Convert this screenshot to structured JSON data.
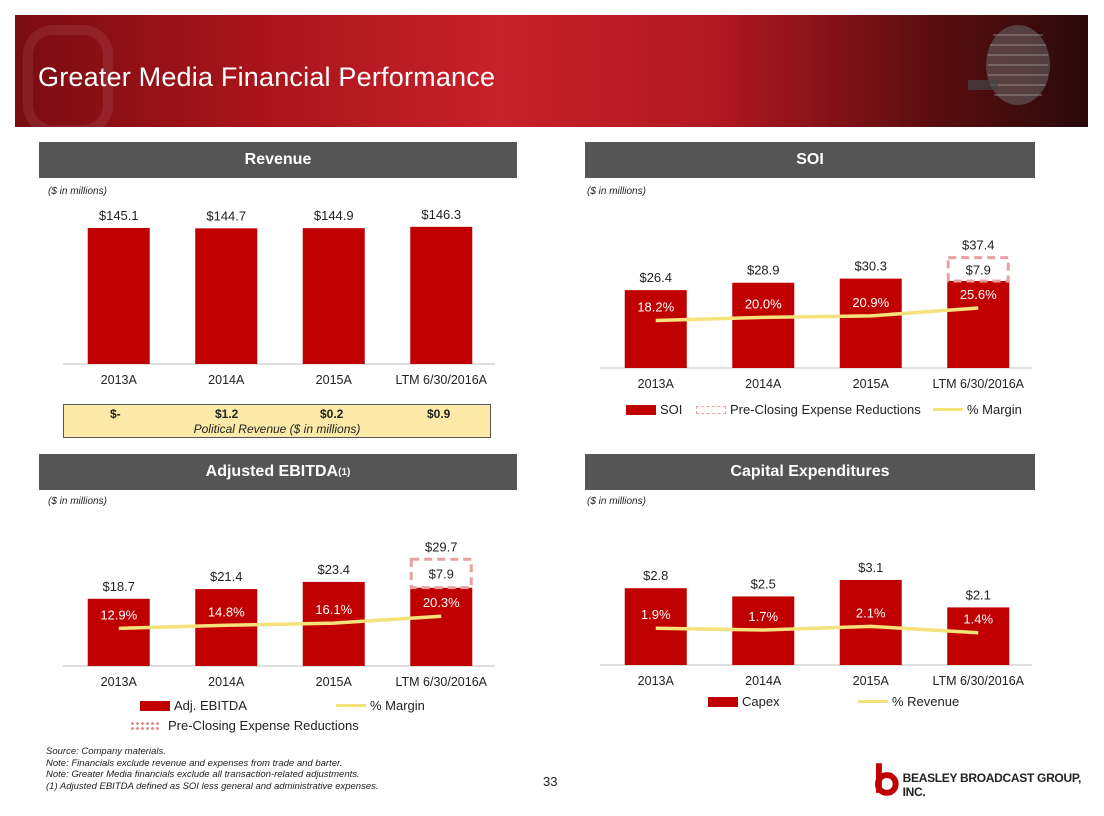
{
  "page": {
    "title": "Greater Media Financial Performance",
    "page_number": "33",
    "logo_text": "BEASLEY BROADCAST GROUP, INC.",
    "footnotes": [
      "Source: Company materials.",
      "Note: Financials exclude revenue and expenses from trade and barter.",
      "Note: Greater Media financials exclude all transaction-related adjustments.",
      "(1)   Adjusted EBITDA defined as SOI less general and administrative expenses."
    ]
  },
  "revenue": {
    "header": "Revenue",
    "unit": "($ in millions)",
    "political": {
      "values": [
        "$-",
        "$1.2",
        "$0.2",
        "$0.9"
      ],
      "caption": "Political Revenue ($ in millions)"
    }
  },
  "soi": {
    "header": "SOI",
    "unit": "($ in millions)",
    "legend": [
      "SOI",
      "Pre-Closing Expense Reductions",
      "% Margin"
    ]
  },
  "ebitda": {
    "header": "Adjusted EBITDA",
    "header_sup": "(1)",
    "unit": "($ in millions)",
    "legend": [
      "Adj. EBITDA",
      "% Margin",
      "Pre-Closing Expense Reductions"
    ]
  },
  "capex": {
    "header": "Capital Expenditures",
    "unit": "($ in millions)",
    "legend": [
      "Capex",
      "% Revenue"
    ]
  },
  "chart_data": [
    {
      "id": "revenue",
      "type": "bar",
      "categories": [
        "2013A",
        "2014A",
        "2015A",
        "LTM 6/30/2016A"
      ],
      "values": [
        145.1,
        144.7,
        144.9,
        146.3
      ],
      "labels": [
        "$145.1",
        "$144.7",
        "$144.9",
        "$146.3"
      ],
      "ylim": [
        0,
        160
      ]
    },
    {
      "id": "soi",
      "type": "bar",
      "categories": [
        "2013A",
        "2014A",
        "2015A",
        "LTM 6/30/2016A"
      ],
      "series": [
        {
          "name": "SOI",
          "values": [
            26.4,
            28.9,
            30.3,
            29.5
          ]
        },
        {
          "name": "Pre-Closing Expense Reductions",
          "values": [
            0,
            0,
            0,
            7.9
          ]
        },
        {
          "name": "% Margin",
          "values": [
            18.2,
            20.0,
            20.9,
            25.6
          ]
        }
      ],
      "total_labels": [
        "$26.4",
        "$28.9",
        "$30.3",
        "$37.4"
      ],
      "stack_label": "$7.9",
      "line_labels": [
        "18.2%",
        "20.0%",
        "20.9%",
        "25.6%"
      ],
      "ylim": [
        0,
        40
      ],
      "line_ylim": [
        -10,
        60
      ]
    },
    {
      "id": "ebitda",
      "type": "bar",
      "categories": [
        "2013A",
        "2014A",
        "2015A",
        "LTM 6/30/2016A"
      ],
      "series": [
        {
          "name": "Adj. EBITDA",
          "values": [
            18.7,
            21.4,
            23.4,
            21.8
          ]
        },
        {
          "name": "Pre-Closing Expense Reductions",
          "values": [
            0,
            0,
            0,
            7.9
          ]
        },
        {
          "name": "% Margin",
          "values": [
            12.9,
            14.8,
            16.1,
            20.3
          ]
        }
      ],
      "total_labels": [
        "$18.7",
        "$21.4",
        "$23.4",
        "$29.7"
      ],
      "stack_label": "$7.9",
      "line_labels": [
        "12.9%",
        "14.8%",
        "16.1%",
        "20.3%"
      ],
      "ylim": [
        0,
        32
      ],
      "line_ylim": [
        -10,
        60
      ]
    },
    {
      "id": "capex",
      "type": "bar",
      "categories": [
        "2013A",
        "2014A",
        "2015A",
        "LTM 6/30/2016A"
      ],
      "series": [
        {
          "name": "Capex",
          "values": [
            2.8,
            2.5,
            3.1,
            2.1
          ]
        },
        {
          "name": "% Revenue",
          "values": [
            1.9,
            1.7,
            2.1,
            1.4
          ]
        }
      ],
      "labels": [
        "$2.8",
        "$2.5",
        "$3.1",
        "$2.1"
      ],
      "line_labels": [
        "1.9%",
        "1.7%",
        "2.1%",
        "1.4%"
      ],
      "ylim": [
        0,
        3.5
      ],
      "line_ylim": [
        -2.2,
        8.5
      ]
    }
  ]
}
